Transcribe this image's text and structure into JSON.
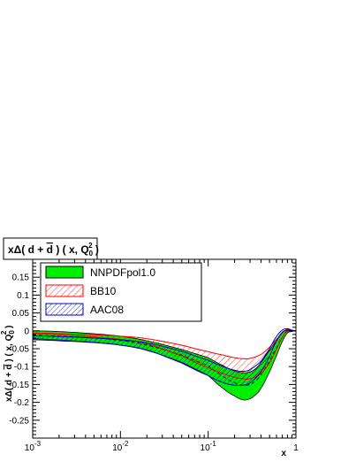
{
  "chart_data": {
    "type": "area",
    "title": "xΔ( d + d̄ ) ( x, Q₀² )",
    "title_parts": {
      "lead": "xΔ( d + ",
      "dbar": "d",
      "tail": " ) ( x, Q",
      "sub": "0",
      "sup": "2",
      "close": " )"
    },
    "xlabel": "x",
    "ylabel": "xΔ( d + d̄ ) ( x, Q₀² )",
    "ylabel_parts": {
      "lead": "xΔ( d + ",
      "dbar": "d",
      "tail": " ) ( x, Q",
      "sub": "0",
      "sup": "2",
      "close": " )"
    },
    "x_scale": "log",
    "xlim": [
      0.001,
      1
    ],
    "ylim": [
      -0.3,
      0.2
    ],
    "x_ticks": [
      {
        "value": 0.001,
        "base": "10",
        "exp": "-3"
      },
      {
        "value": 0.01,
        "base": "10",
        "exp": "-2"
      },
      {
        "value": 0.1,
        "base": "10",
        "exp": "-1"
      },
      {
        "value": 1,
        "base": "1",
        "exp": ""
      }
    ],
    "y_ticks": [
      "-0.25",
      "-0.2",
      "-0.15",
      "-0.1",
      "-0.05",
      "0",
      "0.05",
      "0.1",
      "0.15"
    ],
    "y_tick_values": [
      -0.25,
      -0.2,
      -0.15,
      -0.1,
      -0.05,
      0,
      0.05,
      0.1,
      0.15
    ],
    "legend_position": "top-left",
    "series": [
      {
        "name": "NNPDFpol1.0",
        "style": "solid",
        "fill_color": "#00ee00",
        "line_color": "#000000",
        "x": [
          0.001,
          0.002,
          0.005,
          0.01,
          0.02,
          0.05,
          0.1,
          0.15,
          0.2,
          0.25,
          0.3,
          0.35,
          0.4,
          0.5,
          0.6,
          0.7,
          0.8,
          0.9,
          1.0
        ],
        "upper": [
          0.0,
          -0.002,
          -0.008,
          -0.015,
          -0.028,
          -0.052,
          -0.075,
          -0.098,
          -0.112,
          -0.117,
          -0.115,
          -0.105,
          -0.088,
          -0.055,
          -0.028,
          -0.006,
          0.004,
          0.001,
          0.0
        ],
        "central": [
          -0.012,
          -0.015,
          -0.02,
          -0.027,
          -0.04,
          -0.068,
          -0.098,
          -0.128,
          -0.145,
          -0.152,
          -0.15,
          -0.139,
          -0.122,
          -0.084,
          -0.048,
          -0.018,
          -0.001,
          -0.001,
          0.0
        ],
        "lower": [
          -0.025,
          -0.028,
          -0.033,
          -0.04,
          -0.055,
          -0.088,
          -0.125,
          -0.162,
          -0.182,
          -0.193,
          -0.19,
          -0.178,
          -0.16,
          -0.115,
          -0.07,
          -0.03,
          -0.006,
          -0.002,
          0.0
        ]
      },
      {
        "name": "BB10",
        "style": "hatched",
        "line_color": "#ff0000",
        "x": [
          0.001,
          0.002,
          0.005,
          0.01,
          0.02,
          0.05,
          0.1,
          0.15,
          0.2,
          0.25,
          0.3,
          0.4,
          0.5,
          0.6,
          0.7,
          0.8,
          0.9,
          1.0
        ],
        "upper": [
          -0.006,
          -0.008,
          -0.011,
          -0.015,
          -0.022,
          -0.04,
          -0.058,
          -0.068,
          -0.075,
          -0.078,
          -0.077,
          -0.066,
          -0.046,
          -0.025,
          -0.006,
          0.004,
          0.002,
          0.0
        ],
        "lower": [
          -0.008,
          -0.011,
          -0.017,
          -0.024,
          -0.037,
          -0.07,
          -0.103,
          -0.12,
          -0.13,
          -0.134,
          -0.134,
          -0.12,
          -0.09,
          -0.052,
          -0.018,
          0.001,
          0.0,
          0.0
        ]
      },
      {
        "name": "AAC08",
        "style": "hatched",
        "line_color": "#0000cc",
        "x": [
          0.001,
          0.002,
          0.005,
          0.01,
          0.02,
          0.05,
          0.1,
          0.15,
          0.2,
          0.25,
          0.3,
          0.4,
          0.5,
          0.6,
          0.7,
          0.8,
          0.9,
          1.0
        ],
        "upper": [
          -0.014,
          -0.016,
          -0.02,
          -0.025,
          -0.034,
          -0.057,
          -0.082,
          -0.1,
          -0.11,
          -0.113,
          -0.108,
          -0.085,
          -0.05,
          -0.016,
          0.002,
          0.006,
          0.002,
          0.0
        ],
        "lower": [
          -0.022,
          -0.026,
          -0.032,
          -0.04,
          -0.054,
          -0.09,
          -0.125,
          -0.145,
          -0.152,
          -0.152,
          -0.145,
          -0.115,
          -0.072,
          -0.028,
          -0.004,
          0.002,
          0.0,
          0.0
        ]
      }
    ]
  }
}
